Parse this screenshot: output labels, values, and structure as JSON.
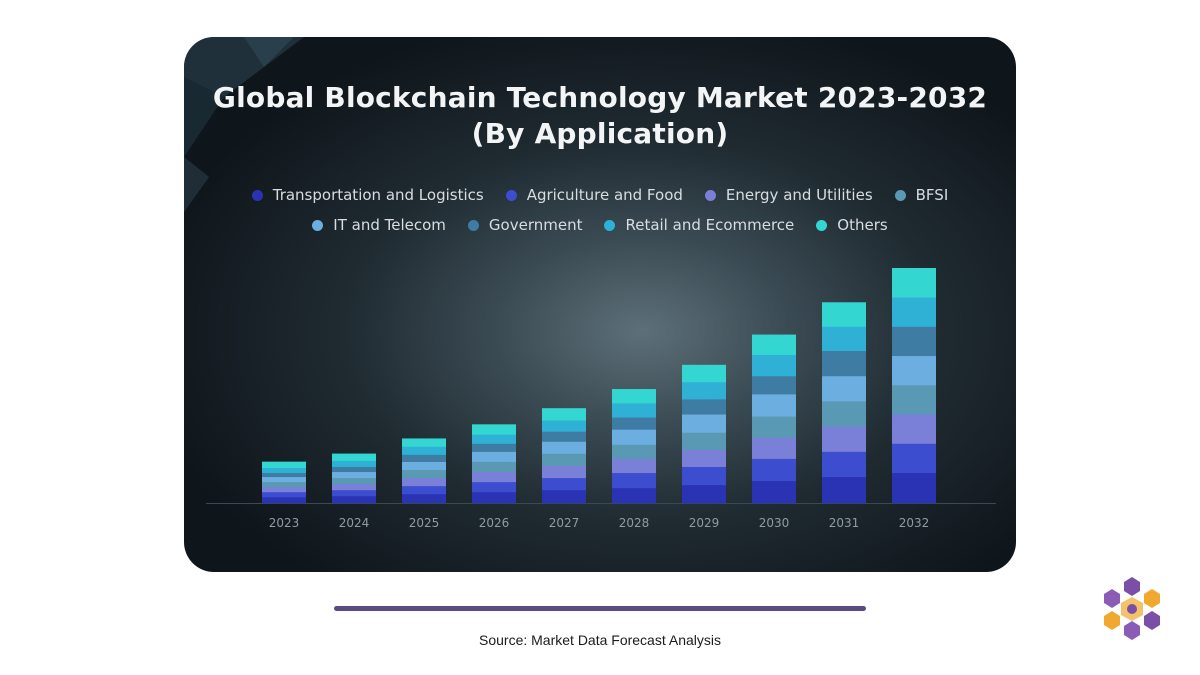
{
  "footer": {
    "source_text": "Source: Market Data Forecast Analysis"
  },
  "colors": {
    "card_background": "#1f2a31",
    "underline": "#5a4c7e",
    "logo_purple": "#7b4fa6",
    "logo_orange": "#f0a830"
  },
  "chart_data": {
    "type": "bar",
    "stacked": true,
    "title_lines": [
      "Global Blockchain Technology Market 2023-2032",
      "(By Application)"
    ],
    "xlabel": "",
    "ylabel": "",
    "grid": false,
    "legend_position": "top-center",
    "categories": [
      "2023",
      "2024",
      "2025",
      "2026",
      "2027",
      "2028",
      "2029",
      "2030",
      "2031",
      "2032"
    ],
    "series": [
      {
        "name": "Transportation and Logistics",
        "color": "#2b33b5",
        "values": [
          6,
          7,
          9,
          11,
          13,
          15,
          18,
          22,
          26,
          30
        ]
      },
      {
        "name": "Agriculture and Food",
        "color": "#3c4ecf",
        "values": [
          5,
          6,
          8,
          10,
          12,
          15,
          18,
          22,
          25,
          29
        ]
      },
      {
        "name": "Energy and Utilities",
        "color": "#7a7fd8",
        "values": [
          5,
          6,
          8,
          10,
          12,
          14,
          17,
          21,
          25,
          29
        ]
      },
      {
        "name": "BFSI",
        "color": "#5a99b4",
        "values": [
          5,
          6,
          8,
          10,
          12,
          14,
          17,
          21,
          25,
          29
        ]
      },
      {
        "name": "IT and Telecom",
        "color": "#6caee0",
        "values": [
          5,
          6,
          8,
          10,
          12,
          15,
          18,
          22,
          25,
          29
        ]
      },
      {
        "name": "Government",
        "color": "#3f7ca3",
        "values": [
          4,
          5,
          7,
          8,
          10,
          12,
          15,
          18,
          25,
          29
        ]
      },
      {
        "name": "Retail and Ecommerce",
        "color": "#2fb1d6",
        "values": [
          5,
          6,
          8,
          9,
          11,
          14,
          17,
          21,
          24,
          29
        ]
      },
      {
        "name": "Others",
        "color": "#34d6d2",
        "values": [
          6,
          7,
          8,
          10,
          12,
          14,
          17,
          20,
          24,
          29
        ]
      }
    ],
    "legend_rows": [
      [
        "Transportation and Logistics",
        "Agriculture and Food",
        "Energy and Utilities",
        "BFSI"
      ],
      [
        "IT and Telecom",
        "Government",
        "Retail and Ecommerce",
        "Others"
      ]
    ]
  }
}
